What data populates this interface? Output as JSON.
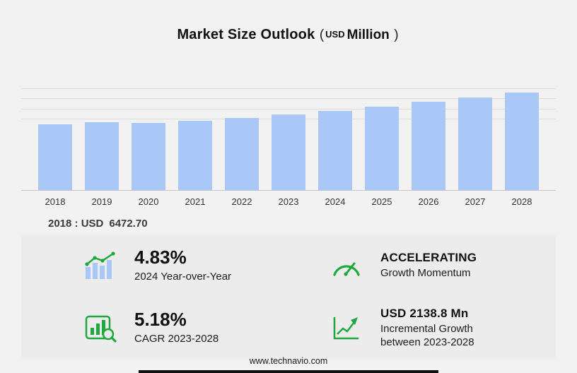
{
  "header": {
    "title": "Market Size Outlook",
    "unit_paren_open": "(",
    "unit_currency": "USD",
    "unit_scale": "Million",
    "unit_paren_close": ")"
  },
  "chart_data": {
    "type": "bar",
    "title": "Market Size Outlook (USD Million)",
    "categories": [
      "2018",
      "2019",
      "2020",
      "2021",
      "2022",
      "2023",
      "2024",
      "2025",
      "2026",
      "2027",
      "2028"
    ],
    "values": [
      6472.7,
      6690,
      6570,
      6840,
      7090,
      7449.6,
      7809.4,
      8221,
      8663,
      9121,
      9588.4
    ],
    "xlabel": "",
    "ylabel": "USD Million",
    "ylim": [
      0,
      10000
    ],
    "grid": true,
    "legend": "none",
    "bar_color": "#a9c7f7",
    "baseline_label": "2018 : USD 6472.70"
  },
  "annotation": {
    "label": "2018 : USD",
    "value": "6472.70"
  },
  "stats": [
    {
      "icon": "bar-chart-growth-icon",
      "value": "4.83%",
      "label": "2024 Year-over-Year"
    },
    {
      "icon": "speedometer-icon",
      "value": "ACCELERATING",
      "label": "Growth Momentum"
    },
    {
      "icon": "magnifier-bar-chart-icon",
      "value": "5.18%",
      "label": "CAGR 2023-2028"
    },
    {
      "icon": "growth-arrow-icon",
      "value": "USD 2138.8 Mn",
      "label": "Incremental Growth between 2023-2028"
    }
  ],
  "colors": {
    "bar": "#a9c7f7",
    "accent_green": "#1fa83d",
    "background": "#f2f2f2",
    "panel": "#ececec"
  },
  "footer": {
    "url": "www.technavio.com"
  }
}
